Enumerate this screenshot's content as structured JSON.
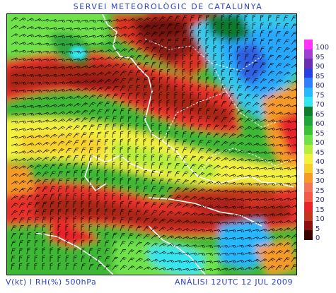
{
  "header": {
    "title": "SERVEI METEOROLÒGIC DE CATALUNYA"
  },
  "legend": {
    "items": [
      {
        "label": "100",
        "color": "#ff33ff"
      },
      {
        "label": "95",
        "color": "#a040d0"
      },
      {
        "label": "90",
        "color": "#6a2fb0"
      },
      {
        "label": "85",
        "color": "#2b3fe0"
      },
      {
        "label": "80",
        "color": "#2f7fff"
      },
      {
        "label": "75",
        "color": "#27b8ff"
      },
      {
        "label": "70",
        "color": "#34e6f0"
      },
      {
        "label": "65",
        "color": "#117a2d"
      },
      {
        "label": "60",
        "color": "#1fa53a"
      },
      {
        "label": "55",
        "color": "#39c238"
      },
      {
        "label": "50",
        "color": "#6fe24a"
      },
      {
        "label": "45",
        "color": "#b6ee3d"
      },
      {
        "label": "40",
        "color": "#f3f040"
      },
      {
        "label": "35",
        "color": "#f7d02e"
      },
      {
        "label": "30",
        "color": "#f59a27"
      },
      {
        "label": "25",
        "color": "#f2745b"
      },
      {
        "label": "20",
        "color": "#f45a4a"
      },
      {
        "label": "15",
        "color": "#e8242a"
      },
      {
        "label": "10",
        "color": "#c0361e"
      },
      {
        "label": "5",
        "color": "#8a1010"
      },
      {
        "label": "0",
        "color": "#3a0000"
      }
    ]
  },
  "footer": {
    "left": "V(kt) I RH(%) 500hPa",
    "right": "ANÀLISI 12UTC 12 JUL 2009"
  }
}
